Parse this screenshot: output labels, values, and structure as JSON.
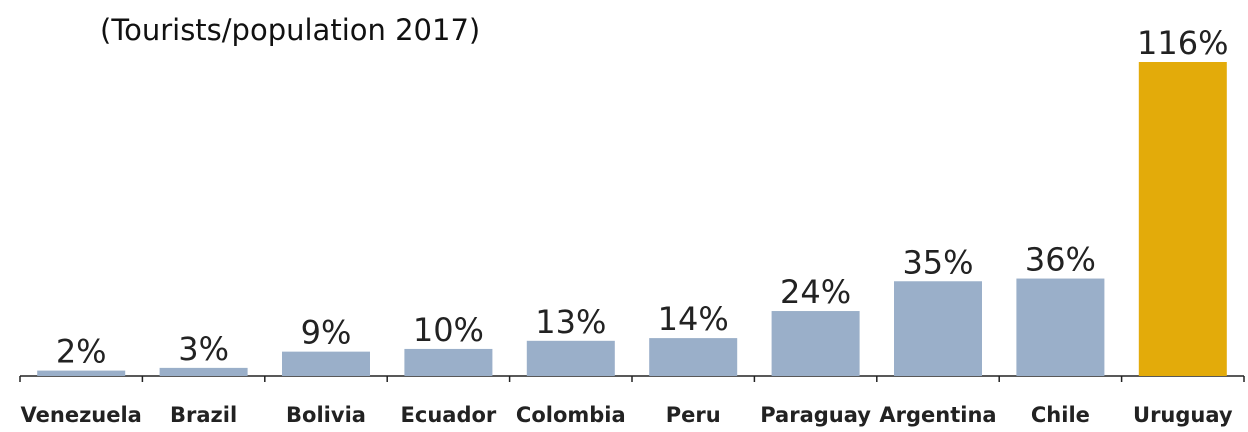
{
  "chart_data": {
    "type": "bar",
    "title": "(Tourists/population 2017)",
    "categories": [
      "Venezuela",
      "Brazil",
      "Bolivia",
      "Ecuador",
      "Colombia",
      "Peru",
      "Paraguay",
      "Argentina",
      "Chile",
      "Uruguay"
    ],
    "values": [
      2,
      3,
      9,
      10,
      13,
      14,
      24,
      35,
      36,
      116
    ],
    "value_labels": [
      "2%",
      "3%",
      "9%",
      "10%",
      "13%",
      "14%",
      "24%",
      "35%",
      "36%",
      "116%"
    ],
    "colors": [
      "#9aafc9",
      "#9aafc9",
      "#9aafc9",
      "#9aafc9",
      "#9aafc9",
      "#9aafc9",
      "#9aafc9",
      "#9aafc9",
      "#9aafc9",
      "#e3ab0a"
    ]
  }
}
